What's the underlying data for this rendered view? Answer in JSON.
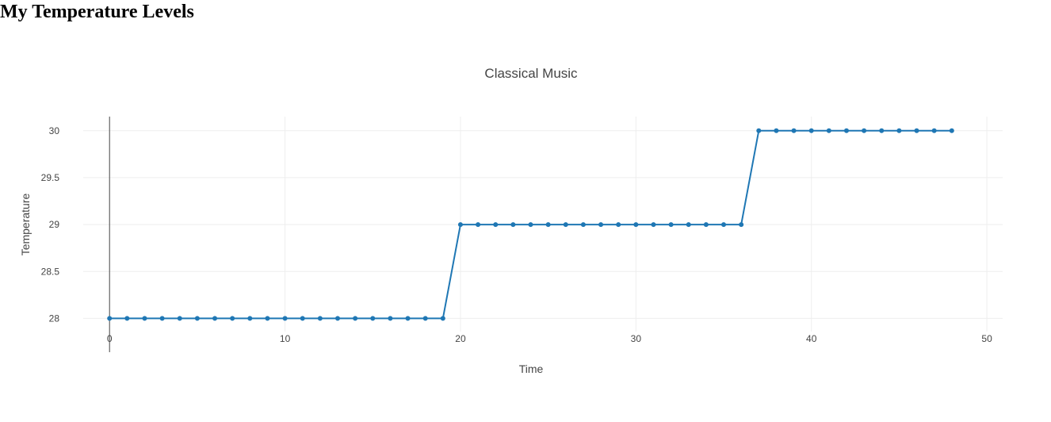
{
  "page": {
    "heading": "My Temperature Levels"
  },
  "chart_data": {
    "type": "line",
    "title": "Classical Music",
    "xlabel": "Time",
    "ylabel": "Temperature",
    "xlim": [
      -1.5,
      50.9
    ],
    "ylim": [
      27.86,
      30.15
    ],
    "xticks": [
      0,
      10,
      20,
      30,
      40,
      50
    ],
    "yticks": [
      28,
      28.5,
      29,
      29.5,
      30
    ],
    "ytick_labels": [
      "28",
      "28.5",
      "29",
      "29.5",
      "30"
    ],
    "grid": true,
    "colors": {
      "series": "#1f77b4",
      "grid": "#eeeeee",
      "zeroline": "#444444"
    },
    "series": [
      {
        "x": [
          0,
          1,
          2,
          3,
          4,
          5,
          6,
          7,
          8,
          9,
          10,
          11,
          12,
          13,
          14,
          15,
          16,
          17,
          18,
          19,
          20,
          21,
          22,
          23,
          24,
          25,
          26,
          27,
          28,
          29,
          30,
          31,
          32,
          33,
          34,
          35,
          36,
          37,
          38,
          39,
          40,
          41,
          42,
          43,
          44,
          45,
          46,
          47,
          48
        ],
        "values": [
          28,
          28,
          28,
          28,
          28,
          28,
          28,
          28,
          28,
          28,
          28,
          28,
          28,
          28,
          28,
          28,
          28,
          28,
          28,
          28,
          29,
          29,
          29,
          29,
          29,
          29,
          29,
          29,
          29,
          29,
          29,
          29,
          29,
          29,
          29,
          29,
          29,
          30,
          30,
          30,
          30,
          30,
          30,
          30,
          30,
          30,
          30,
          30,
          30
        ]
      }
    ]
  }
}
